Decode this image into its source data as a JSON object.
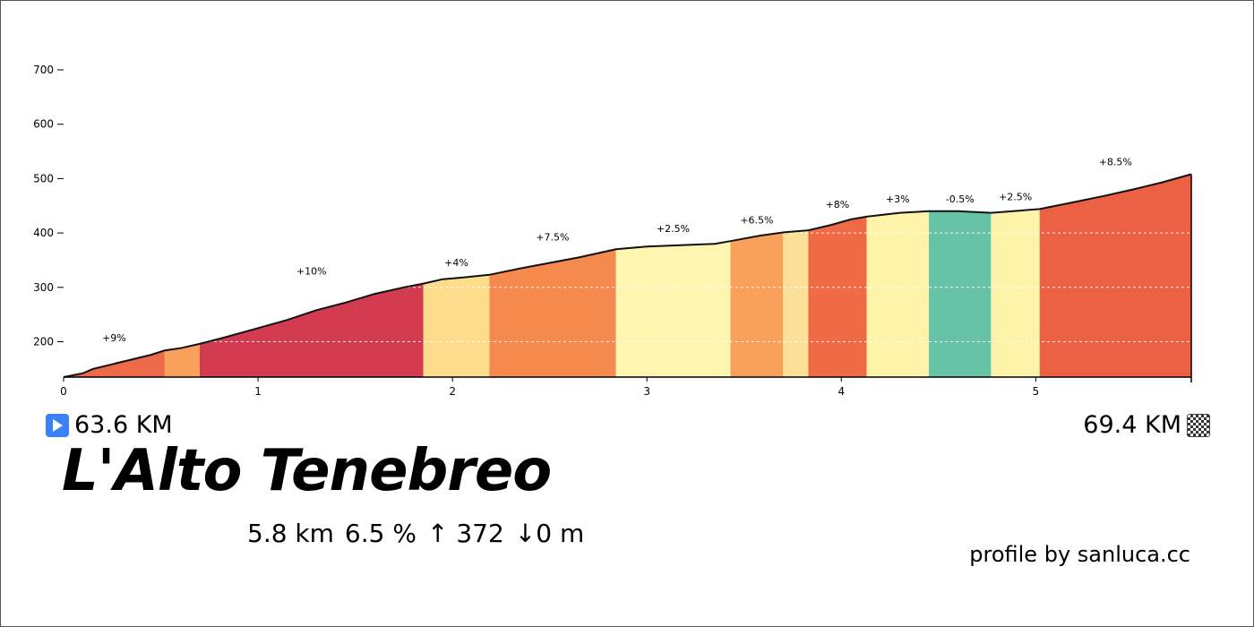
{
  "start_km": "63.6 KM",
  "end_km": "69.4 KM",
  "climb_name": "L'Alto Tenebreo",
  "stats": {
    "distance": "5.8 km",
    "avg_grade": "6.5 %",
    "ascent": "↑ 372",
    "descent": "↓0 m"
  },
  "credit": "profile by sanluca.cc",
  "icons": {
    "start": "play-icon",
    "finish": "checkered-flag-icon"
  },
  "colors": {
    "start_icon": "#3b82f6",
    "profile_line": "#111111"
  },
  "chart_data": {
    "type": "area",
    "title": "",
    "xlabel": "",
    "ylabel": "",
    "xlim": [
      0,
      5.8
    ],
    "ylim": [
      135,
      720
    ],
    "x_ticks": [
      0,
      1,
      2,
      3,
      4,
      5
    ],
    "y_ticks": [
      200,
      300,
      400,
      500,
      600,
      700
    ],
    "grid_y": [
      200,
      300,
      400
    ],
    "profile": [
      [
        0,
        135
      ],
      [
        0.1,
        142
      ],
      [
        0.15,
        150
      ],
      [
        0.3,
        163
      ],
      [
        0.45,
        176
      ],
      [
        0.52,
        184
      ],
      [
        0.6,
        188
      ],
      [
        0.7,
        196
      ],
      [
        0.85,
        210
      ],
      [
        1.0,
        225
      ],
      [
        1.15,
        240
      ],
      [
        1.3,
        258
      ],
      [
        1.45,
        272
      ],
      [
        1.6,
        288
      ],
      [
        1.75,
        300
      ],
      [
        1.85,
        307
      ],
      [
        1.95,
        315
      ],
      [
        2.05,
        318
      ],
      [
        2.19,
        323
      ],
      [
        2.35,
        335
      ],
      [
        2.5,
        345
      ],
      [
        2.65,
        355
      ],
      [
        2.75,
        363
      ],
      [
        2.84,
        370
      ],
      [
        3.0,
        375
      ],
      [
        3.2,
        378
      ],
      [
        3.35,
        380
      ],
      [
        3.43,
        385
      ],
      [
        3.58,
        395
      ],
      [
        3.7,
        401
      ],
      [
        3.83,
        405
      ],
      [
        3.95,
        415
      ],
      [
        4.05,
        425
      ],
      [
        4.13,
        430
      ],
      [
        4.3,
        437
      ],
      [
        4.45,
        440
      ],
      [
        4.6,
        440
      ],
      [
        4.77,
        437
      ],
      [
        5.02,
        444
      ],
      [
        5.2,
        457
      ],
      [
        5.35,
        468
      ],
      [
        5.5,
        480
      ],
      [
        5.65,
        493
      ],
      [
        5.8,
        508
      ]
    ],
    "segments": [
      {
        "from": 0.0,
        "to": 0.52,
        "color": "#ec6a4a",
        "grade": "+9%"
      },
      {
        "from": 0.52,
        "to": 0.7,
        "color": "#f9a15a",
        "grade": ""
      },
      {
        "from": 0.7,
        "to": 1.85,
        "color": "#d23b50",
        "grade": "+10%"
      },
      {
        "from": 1.85,
        "to": 2.19,
        "color": "#fddd8c",
        "grade": "+4%"
      },
      {
        "from": 2.19,
        "to": 2.84,
        "color": "#f68a4e",
        "grade": "+7.5%"
      },
      {
        "from": 2.84,
        "to": 3.43,
        "color": "#fef5b0",
        "grade": "+2.5%"
      },
      {
        "from": 3.43,
        "to": 3.7,
        "color": "#f9a15a",
        "grade": "+6.5%"
      },
      {
        "from": 3.7,
        "to": 3.83,
        "color": "#fbe09a",
        "grade": ""
      },
      {
        "from": 3.83,
        "to": 4.13,
        "color": "#f06a45",
        "grade": "+8%"
      },
      {
        "from": 4.13,
        "to": 4.45,
        "color": "#fef3a8",
        "grade": "+3%"
      },
      {
        "from": 4.45,
        "to": 4.77,
        "color": "#66c3a5",
        "grade": "-0.5%"
      },
      {
        "from": 4.77,
        "to": 5.02,
        "color": "#fef3a8",
        "grade": "+2.5%"
      },
      {
        "from": 5.02,
        "to": 5.8,
        "color": "#ec6043",
        "grade": "+8.5%"
      }
    ]
  }
}
